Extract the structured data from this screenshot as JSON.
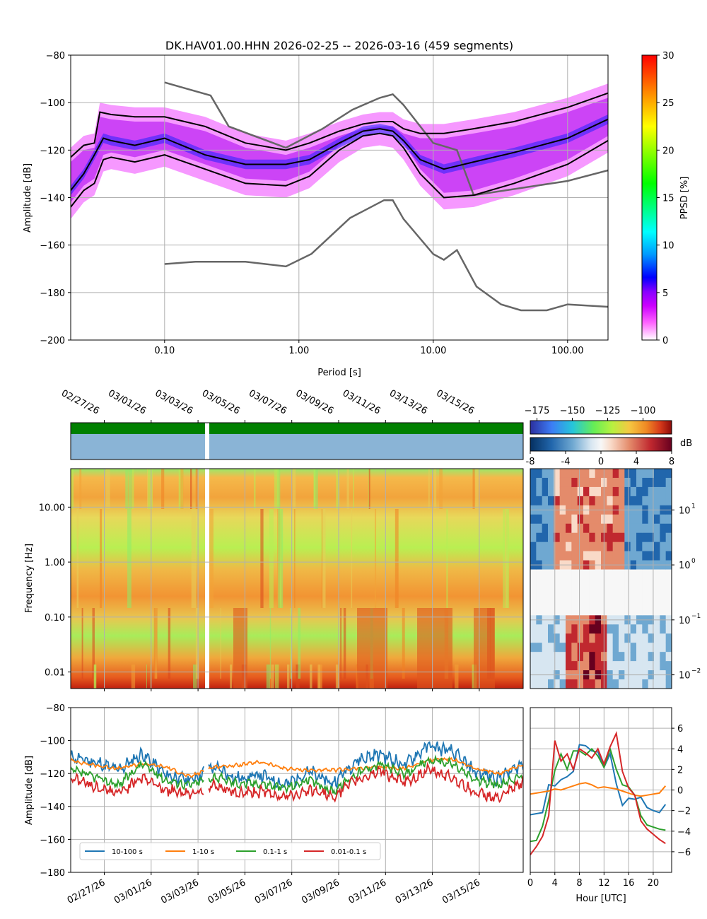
{
  "colors": {
    "ppsd_cmap": [
      "#ffffff",
      "#ff66ff",
      "#cc00ff",
      "#8800ff",
      "#0000ff",
      "#0099ff",
      "#00ffff",
      "#00ff00",
      "#ffff00",
      "#ff8800",
      "#ff0000"
    ],
    "percentile_line": "#000000",
    "noise_model": "#666666",
    "availability_data": "#008000",
    "availability_gap": "#ffffff",
    "availability_lower": "#8ab4d6",
    "spectrogram": [
      "#2b2f9e",
      "#3c7cf5",
      "#26c6da",
      "#66ee55",
      "#b8f040",
      "#f5c842",
      "#f08a24",
      "#d6391a",
      "#8b0a0a"
    ],
    "diverging": [
      "#053061",
      "#2166ac",
      "#6fa8d1",
      "#d7e6f1",
      "#f7f7f7",
      "#f9dac8",
      "#e48b6b",
      "#c0282f",
      "#67001f"
    ],
    "band_10_100": "#1f77b4",
    "band_1_10": "#ff7f0e",
    "band_01_1": "#2ca02c",
    "band_001_01": "#d62728",
    "grid": "#b0b0b0"
  },
  "ppsd": {
    "title": "DK.HAV01.00.HHN   2026-02-25 -- 2026-03-16  (459 segments)",
    "xlabel": "Period [s]",
    "ylabel": "Amplitude [dB]",
    "colorbar_label": "PPSD [%]",
    "x_ticks": [
      "0.10",
      "1.00",
      "10.00",
      "100.00"
    ],
    "y_ticks": [
      "−200",
      "−180",
      "−160",
      "−140",
      "−120",
      "−100",
      "−80"
    ],
    "cbar_ticks": [
      "0",
      "5",
      "10",
      "15",
      "20",
      "25",
      "30"
    ]
  },
  "spectro": {
    "date_ticks": [
      "02/27/26",
      "03/01/26",
      "03/03/26",
      "03/05/26",
      "03/07/26",
      "03/09/26",
      "03/11/26",
      "03/13/26",
      "03/15/26"
    ],
    "freq_label": "Frequency [Hz]",
    "freq_ticks": [
      "10.00",
      "1.00",
      "0.10",
      "0.01"
    ],
    "cbar_db_ticks": [
      "−175",
      "−150",
      "−125",
      "−100"
    ],
    "cbar_diff_ticks": [
      "-8",
      "-4",
      "0",
      "4",
      "8"
    ],
    "cbar_unit": "dB",
    "right_ticks": [
      "10",
      "10",
      "10",
      "10"
    ],
    "right_ticks_exp": [
      "1",
      "0",
      "−1",
      "−2"
    ]
  },
  "bands": {
    "ylabel": "Amplitude [dB]",
    "y_ticks": [
      "−180",
      "−160",
      "−140",
      "−120",
      "−100",
      "−80"
    ],
    "legend": [
      "10-100 s",
      "1-10 s",
      "0.1-1 s",
      "0.01-0.1 s"
    ],
    "hour_label": "Hour [UTC]",
    "hour_ticks": [
      "0",
      "4",
      "8",
      "12",
      "16",
      "20"
    ],
    "right_ticks": [
      "−6",
      "−4",
      "−2",
      "0",
      "2",
      "4",
      "6"
    ]
  },
  "chart_data": [
    {
      "type": "heatmap",
      "title": "DK.HAV01.00.HHN   2026-02-25 -- 2026-03-16  (459 segments)",
      "xlabel": "Period [s]",
      "ylabel": "Amplitude [dB]",
      "xscale": "log",
      "xlim": [
        0.02,
        200
      ],
      "ylim": [
        -200,
        -80
      ],
      "colorbar": {
        "label": "PPSD [%]",
        "range": [
          0,
          30
        ]
      },
      "percentiles": [
        {
          "name": "upper",
          "x": [
            0.02,
            0.025,
            0.03,
            0.033,
            0.04,
            0.06,
            0.1,
            0.2,
            0.4,
            0.8,
            1.2,
            2,
            3,
            4,
            5,
            6,
            8,
            12,
            20,
            40,
            100,
            200
          ],
          "y": [
            -123,
            -118,
            -117,
            -104,
            -105,
            -106,
            -106,
            -110,
            -117,
            -120,
            -117,
            -112,
            -109,
            -108,
            -108,
            -111,
            -113,
            -113,
            -111,
            -108,
            -102,
            -96
          ]
        },
        {
          "name": "median",
          "x": [
            0.02,
            0.025,
            0.03,
            0.035,
            0.04,
            0.06,
            0.1,
            0.2,
            0.4,
            0.8,
            1.2,
            2,
            3,
            4,
            5,
            6,
            8,
            12,
            20,
            40,
            100,
            200
          ],
          "y": [
            -137,
            -130,
            -122,
            -115,
            -116,
            -118,
            -115,
            -122,
            -126,
            -126,
            -124,
            -117,
            -112,
            -111,
            -112,
            -116,
            -124,
            -128,
            -125,
            -121,
            -115,
            -107
          ]
        },
        {
          "name": "lower",
          "x": [
            0.02,
            0.025,
            0.03,
            0.035,
            0.04,
            0.06,
            0.1,
            0.2,
            0.4,
            0.8,
            1.2,
            2,
            3,
            4,
            5,
            6,
            8,
            12,
            20,
            40,
            100,
            200
          ],
          "y": [
            -144,
            -137,
            -134,
            -124,
            -123,
            -125,
            -122,
            -128,
            -134,
            -135,
            -131,
            -120,
            -114,
            -113,
            -114,
            -119,
            -130,
            -140,
            -139,
            -134,
            -126,
            -116
          ]
        }
      ],
      "noise_models": [
        {
          "name": "NHNM",
          "x": [
            0.1,
            0.22,
            0.3,
            0.8,
            1.5,
            2.5,
            4,
            5,
            6,
            10,
            15,
            20
          ],
          "y": [
            -91.5,
            -97,
            -110,
            -119,
            -111,
            -103,
            -98,
            -96.5,
            -101,
            -117,
            -120,
            -139
          ]
        },
        {
          "name": "NHNM-long",
          "x": [
            20,
            100,
            200
          ],
          "y": [
            -139,
            -133,
            -128.5
          ]
        },
        {
          "name": "NLNM",
          "x": [
            0.1,
            0.17,
            0.4,
            0.8,
            1.24,
            2.4,
            4.3,
            5,
            6,
            10,
            12,
            15,
            21,
            32,
            45,
            70,
            100,
            200
          ],
          "y": [
            -168,
            -167,
            -167,
            -169,
            -163.7,
            -148.6,
            -141.1,
            -141.1,
            -149,
            -163.8,
            -166.2,
            -162.1,
            -177.5,
            -185,
            -187.5,
            -187.5,
            -185,
            -186
          ]
        }
      ]
    },
    {
      "type": "heatmap",
      "xlabel": "",
      "ylabel": "Frequency [Hz]",
      "yscale": "log",
      "ylim": [
        0.005,
        50
      ],
      "x_ticks": [
        "02/27/26",
        "03/01/26",
        "03/03/26",
        "03/05/26",
        "03/07/26",
        "03/09/26",
        "03/11/26",
        "03/13/26",
        "03/15/26"
      ],
      "colorbar": {
        "range": [
          -180,
          -80
        ],
        "ticks": [
          -175,
          -150,
          -125,
          -100
        ]
      },
      "data_gap": "03/04/26"
    },
    {
      "type": "heatmap",
      "ylabel": "Frequency [Hz]",
      "xlabel": "Hour [UTC]",
      "colorbar": {
        "unit": "dB",
        "range": [
          -8,
          8
        ],
        "ticks": [
          -8,
          -4,
          0,
          4,
          8
        ]
      }
    },
    {
      "type": "line",
      "ylabel": "Amplitude [dB]",
      "ylim": [
        -180,
        -80
      ],
      "x": [
        "02/26/26",
        "02/27/26",
        "02/28/26",
        "03/01/26",
        "03/02/26",
        "03/03/26",
        "03/04/26",
        "03/05/26",
        "03/06/26",
        "03/07/26",
        "03/08/26",
        "03/09/26",
        "03/10/26",
        "03/11/26",
        "03/12/26",
        "03/13/26",
        "03/14/26",
        "03/15/26",
        "03/16/26",
        "03/17/26"
      ],
      "series": [
        {
          "name": "10-100 s",
          "values": [
            -110,
            -113,
            -118,
            -108,
            -121,
            -124,
            -116,
            -123,
            -121,
            -127,
            -119,
            -126,
            -112,
            -108,
            -115,
            -103,
            -107,
            -119,
            -123,
            -114
          ]
        },
        {
          "name": "1-10 s",
          "values": [
            -112,
            -115,
            -117,
            -114,
            -116,
            -122,
            -116,
            -115,
            -113,
            -117,
            -118,
            -118,
            -117,
            -116,
            -117,
            -112,
            -111,
            -117,
            -120,
            -115
          ]
        },
        {
          "name": "0.1-1 s",
          "values": [
            -118,
            -122,
            -127,
            -114,
            -124,
            -127,
            -122,
            -126,
            -126,
            -129,
            -124,
            -131,
            -120,
            -114,
            -121,
            -112,
            -114,
            -124,
            -127,
            -121
          ]
        },
        {
          "name": "0.01-0.1 s",
          "values": [
            -122,
            -128,
            -132,
            -122,
            -130,
            -132,
            -128,
            -132,
            -131,
            -134,
            -130,
            -134,
            -124,
            -118,
            -126,
            -118,
            -122,
            -132,
            -135,
            -125
          ]
        }
      ]
    },
    {
      "type": "line",
      "xlabel": "Hour [UTC]",
      "xlim": [
        0,
        23
      ],
      "ylim": [
        -8,
        8
      ],
      "x": [
        0,
        1,
        2,
        3,
        4,
        5,
        6,
        7,
        8,
        9,
        10,
        11,
        12,
        13,
        14,
        15,
        16,
        17,
        18,
        19,
        20,
        21,
        22
      ],
      "series": [
        {
          "name": "10-100 s",
          "values": [
            -2.4,
            -2.3,
            -2.2,
            0.5,
            0.4,
            1.0,
            1.3,
            1.8,
            4.4,
            4.3,
            3.8,
            3.7,
            2.2,
            3.5,
            0.6,
            -1.5,
            -0.8,
            -0.9,
            -0.7,
            -1.7,
            -2.0,
            -2.2,
            -1.4
          ]
        },
        {
          "name": "1-10 s",
          "values": [
            -0.4,
            -0.3,
            -0.2,
            -0.1,
            0.1,
            0.0,
            0.2,
            0.4,
            0.6,
            0.7,
            0.5,
            0.2,
            0.3,
            0.2,
            0.1,
            -0.1,
            -0.3,
            -0.5,
            -0.6,
            -0.5,
            -0.4,
            -0.3,
            0.4
          ]
        },
        {
          "name": "0.1-1 s",
          "values": [
            -5.0,
            -4.9,
            -3.5,
            -1.0,
            1.9,
            3.5,
            2.0,
            3.8,
            3.8,
            3.4,
            4.0,
            3.3,
            2.2,
            4.0,
            2.0,
            0.5,
            0.3,
            -0.5,
            -2.5,
            -3.4,
            -3.6,
            -3.8,
            -3.9
          ]
        },
        {
          "name": "0.01-0.1 s",
          "values": [
            -6.3,
            -5.5,
            -4.5,
            -2.5,
            4.8,
            2.8,
            3.5,
            2.0,
            4.0,
            3.6,
            3.1,
            4.0,
            2.5,
            4.2,
            5.5,
            1.8,
            0.2,
            -0.5,
            -3.0,
            -3.8,
            -4.3,
            -4.8,
            -5.2
          ]
        }
      ]
    }
  ]
}
